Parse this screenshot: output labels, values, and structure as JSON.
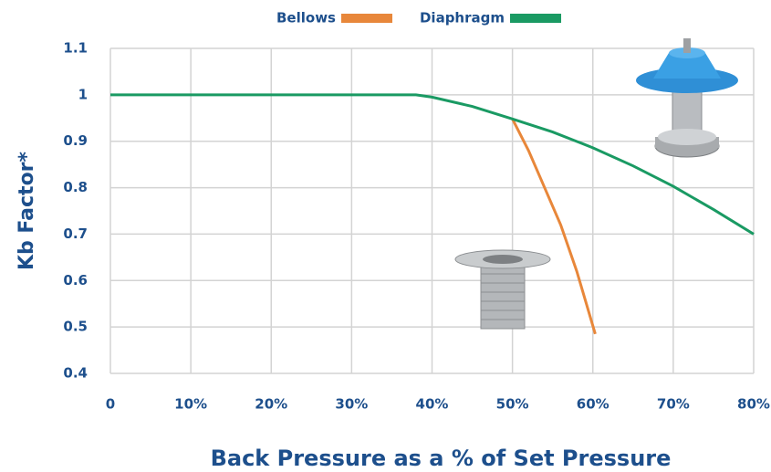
{
  "chart_data": {
    "type": "line",
    "x_label": "Back Pressure as a % of Set Pressure",
    "y_label": "Kb Factor*",
    "series": [
      {
        "name": "Bellows",
        "color": "#e8873a",
        "x": [
          50,
          52,
          54,
          56,
          58,
          60.3
        ],
        "values": [
          0.948,
          0.88,
          0.8,
          0.72,
          0.62,
          0.485
        ]
      },
      {
        "name": "Diaphragm",
        "color": "#1a9a63",
        "x": [
          0,
          38,
          40,
          45,
          50,
          55,
          60,
          65,
          70,
          75,
          80
        ],
        "values": [
          1,
          1,
          0.995,
          0.975,
          0.948,
          0.92,
          0.886,
          0.847,
          0.803,
          0.753,
          0.7
        ]
      }
    ],
    "xlim": [
      0,
      80
    ],
    "xticks": [
      0,
      {
        "value": 10,
        "label": "10%"
      },
      {
        "value": 20,
        "label": "20%"
      },
      {
        "value": 30,
        "label": "30%"
      },
      {
        "value": 40,
        "label": "40%"
      },
      {
        "value": 50,
        "label": "50%"
      },
      {
        "value": 60,
        "label": "60%"
      },
      {
        "value": 70,
        "label": "70%"
      },
      {
        "value": 80,
        "label": "80%"
      }
    ],
    "ylim": [
      0.4,
      1.1
    ],
    "yticks": [
      0.4,
      0.5,
      0.6,
      0.7,
      0.8,
      0.9,
      1,
      1.1
    ],
    "grid": true,
    "legend": "top"
  }
}
